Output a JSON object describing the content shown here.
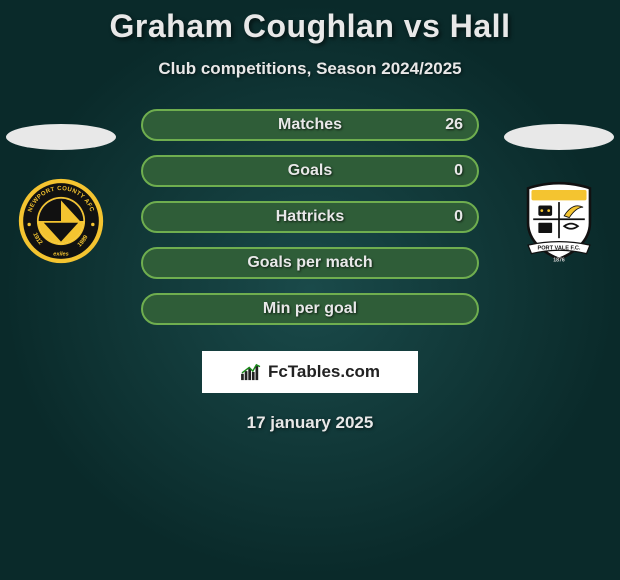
{
  "title": "Graham Coughlan vs Hall",
  "subtitle": "Club competitions, Season 2024/2025",
  "date": "17 january 2025",
  "logo_text": "FcTables.com",
  "colors": {
    "pill_fill": "#2f5d38",
    "pill_border": "#6fae4f",
    "text": "#e8e8e8",
    "title_accent": "#d6d6d6",
    "ellipse": "#e8e8e8",
    "logo_bg": "#ffffff",
    "bg_inner": "#1a4a4a",
    "bg_outer": "#0a2a2a"
  },
  "stats": [
    {
      "label": "Matches",
      "value": "26"
    },
    {
      "label": "Goals",
      "value": "0"
    },
    {
      "label": "Hattricks",
      "value": "0"
    },
    {
      "label": "Goals per match",
      "value": ""
    },
    {
      "label": "Min per goal",
      "value": ""
    }
  ],
  "crests": {
    "left": {
      "name": "newport-county-afc",
      "ring_outer": "#f4c430",
      "ring_inner": "#111111",
      "center_stripe": "#f4c430",
      "center_bg": "#111111",
      "top_text": "NEWPORT COUNTY AFC",
      "bottom_left": "1912",
      "bottom_right": "1989",
      "bottom_word": "exiles"
    },
    "right": {
      "name": "port-vale-fc",
      "shield_fill": "#ffffff",
      "shield_stroke": "#111111",
      "accent": "#f4c430",
      "ribbon_text": "PORT VALE F.C.",
      "year": "1876"
    }
  }
}
